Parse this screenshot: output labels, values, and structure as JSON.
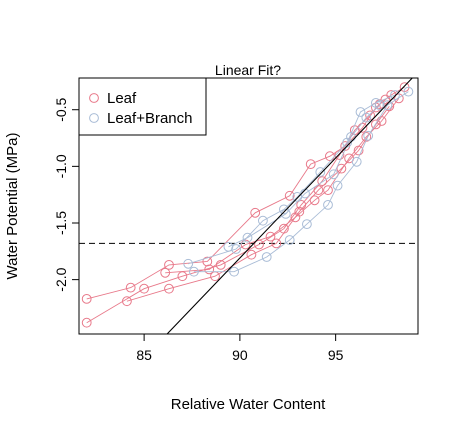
{
  "chart_data": {
    "type": "scatter",
    "title": "Linear Fit?",
    "xlabel": "Relative Water Content",
    "ylabel": "Water Potential (MPa)",
    "xlim": [
      81.6,
      99.3
    ],
    "ylim": [
      -2.48,
      -0.22
    ],
    "xticks": [
      85,
      90,
      95
    ],
    "yticks": [
      -2.0,
      -1.5,
      -1.0,
      -0.5
    ],
    "xtick_labels": [
      "85",
      "90",
      "95"
    ],
    "ytick_labels": [
      "-2.0",
      "-1.5",
      "-1.0",
      "-0.5"
    ],
    "legend_position": "top-left",
    "grid": false,
    "reference_hline": -1.68,
    "fit_line": {
      "x": [
        86.2,
        99.0
      ],
      "y": [
        -2.48,
        -0.22
      ]
    },
    "series": [
      {
        "name": "Leaf",
        "color": "#e8798a",
        "tracks": [
          {
            "x": [
              82.0,
              85.0,
              87.0,
              89.0,
              91.0,
              92.3,
              93.2,
              94.3,
              95.2,
              96.0,
              96.8,
              97.3,
              97.9,
              98.6
            ],
            "y": [
              -2.38,
              -2.08,
              -1.97,
              -1.87,
              -1.69,
              -1.55,
              -1.34,
              -1.13,
              -0.9,
              -0.68,
              -0.55,
              -0.45,
              -0.37,
              -0.3
            ]
          },
          {
            "x": [
              82.0,
              84.3,
              86.3,
              88.3,
              90.8,
              92.6,
              93.7,
              94.7,
              95.5,
              96.4,
              97.1,
              97.6
            ],
            "y": [
              -2.17,
              -2.07,
              -1.87,
              -1.84,
              -1.41,
              -1.26,
              -0.98,
              -0.91,
              -0.82,
              -0.66,
              -0.48,
              -0.41
            ]
          },
          {
            "x": [
              84.1,
              86.3,
              88.7,
              90.6,
              91.9,
              93.1,
              94.1,
              95.3,
              96.2,
              97.1,
              97.8
            ],
            "y": [
              -2.19,
              -2.08,
              -1.97,
              -1.78,
              -1.68,
              -1.4,
              -1.21,
              -1.02,
              -0.86,
              -0.63,
              -0.47
            ]
          },
          {
            "x": [
              86.1,
              88.4,
              90.3,
              91.6,
              92.9,
              93.9,
              94.6,
              95.7,
              96.6,
              97.4,
              98.3
            ],
            "y": [
              -1.94,
              -1.91,
              -1.69,
              -1.62,
              -1.45,
              -1.3,
              -1.21,
              -0.93,
              -0.74,
              -0.6,
              -0.4
            ]
          }
        ]
      },
      {
        "name": "Leaf+Branch",
        "color": "#a9bcd6",
        "tracks": [
          {
            "x": [
              87.6,
              89.7,
              91.4,
              92.6,
              93.5,
              94.6,
              95.1,
              96.1,
              96.7,
              97.7,
              98.8
            ],
            "y": [
              -1.93,
              -1.93,
              -1.8,
              -1.65,
              -1.51,
              -1.34,
              -1.17,
              -0.96,
              -0.73,
              -0.46,
              -0.34
            ]
          },
          {
            "x": [
              87.3,
              89.8,
              91.2,
              92.3,
              93.0,
              94.2,
              95.6,
              96.3,
              97.1,
              98.1
            ],
            "y": [
              -1.86,
              -1.73,
              -1.48,
              -1.38,
              -1.27,
              -1.05,
              -0.79,
              -0.52,
              -0.44,
              -0.37
            ]
          },
          {
            "x": [
              89.4,
              90.4,
              92.4,
              93.4,
              94.9,
              95.8,
              96.6,
              97.3
            ],
            "y": [
              -1.71,
              -1.63,
              -1.42,
              -1.24,
              -1.07,
              -0.74,
              -0.57,
              -0.46
            ]
          }
        ]
      }
    ]
  }
}
